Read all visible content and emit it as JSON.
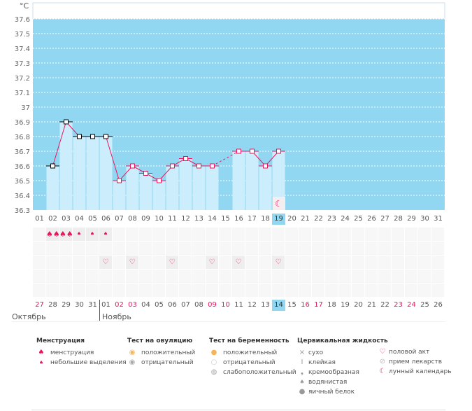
{
  "unit": "°C",
  "chart_data": {
    "type": "bar+line",
    "ylim": [
      36.3,
      37.6
    ],
    "yticks": [
      "36.3",
      "36.4",
      "36.5",
      "36.6",
      "36.7",
      "36.8",
      "36.9",
      "37",
      "37.1",
      "37.2",
      "37.3",
      "37.4",
      "37.5",
      "37.6"
    ],
    "cycle_days": [
      "01",
      "02",
      "03",
      "04",
      "05",
      "06",
      "07",
      "08",
      "09",
      "10",
      "11",
      "12",
      "13",
      "14",
      "15",
      "16",
      "17",
      "18",
      "19",
      "20",
      "21",
      "22",
      "23",
      "24",
      "25",
      "26",
      "27",
      "28",
      "29",
      "30",
      "31"
    ],
    "temperatures": [
      null,
      36.6,
      36.9,
      36.8,
      36.8,
      36.8,
      36.5,
      36.6,
      36.55,
      36.5,
      36.6,
      36.65,
      36.6,
      36.6,
      null,
      36.7,
      36.7,
      36.6,
      36.7,
      null,
      null,
      null,
      null,
      null,
      null,
      null,
      null,
      null,
      null,
      null,
      null
    ],
    "menstruation_days": 5,
    "today_cycle_day": 19
  },
  "dates": [
    "27",
    "28",
    "29",
    "30",
    "31",
    "01",
    "02",
    "03",
    "04",
    "05",
    "06",
    "07",
    "08",
    "09",
    "10",
    "11",
    "12",
    "13",
    "14",
    "15",
    "16",
    "17",
    "18",
    "19",
    "20",
    "21",
    "22",
    "23",
    "24",
    "25",
    "26"
  ],
  "weekend_dates": [
    0,
    6,
    7,
    13,
    14,
    20,
    21,
    27,
    28
  ],
  "today_date_index": 18,
  "menstruation_row": [
    null,
    "heavy",
    "heavy",
    "light",
    "light",
    "light"
  ],
  "sex_days": [
    6,
    8,
    11,
    14,
    16,
    19
  ],
  "months": {
    "prev": "Октябрь",
    "next": "Ноябрь"
  },
  "colors": {
    "bg": "#91d7f2",
    "bar": "#cceefc",
    "line": "#e8175d"
  },
  "legend": {
    "menstruation": {
      "title": "Менструация",
      "items": [
        "менструация",
        "небольшие выделения"
      ]
    },
    "ovulation": {
      "title": "Тест на овуляцию",
      "items": [
        "положительный",
        "отрицательный"
      ]
    },
    "pregnancy": {
      "title": "Тест на беременность",
      "items": [
        "положительный",
        "отрицательный",
        "слабоположительный"
      ]
    },
    "cervical": {
      "title": "Цервикальная жидкость",
      "items": [
        "сухо",
        "клейкая",
        "кремообразная",
        "водянистая",
        "яичный белок"
      ]
    },
    "other": {
      "items": [
        "половой акт",
        "прием лекарств",
        "лунный календарь"
      ]
    }
  }
}
